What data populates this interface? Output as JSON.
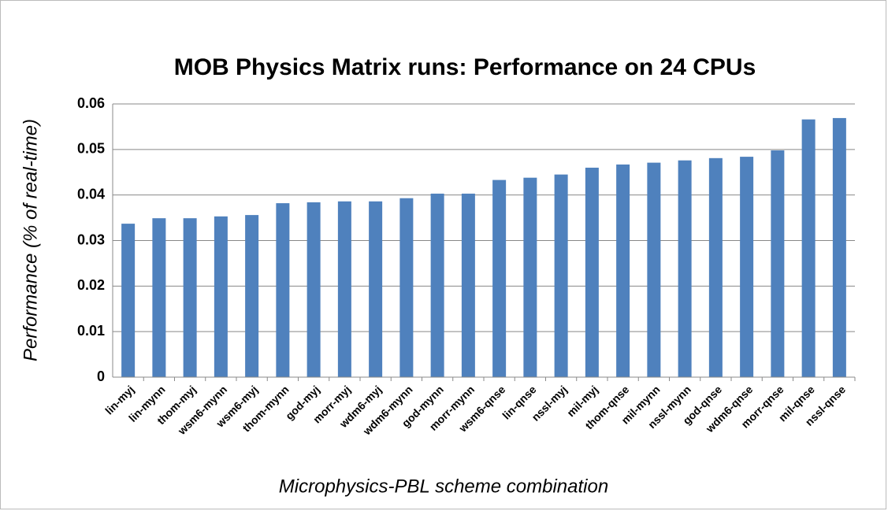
{
  "chart_data": {
    "type": "bar",
    "title": "MOB Physics Matrix runs: Performance on 24 CPUs",
    "x_label": "Microphysics-PBL scheme combination",
    "y_label": "Performance (% of real-time)",
    "categories": [
      "lin-myj",
      "lin-mynn",
      "thom-myj",
      "wsm6-mynn",
      "wsm6-myj",
      "thom-mynn",
      "god-myj",
      "morr-myj",
      "wdm6-myj",
      "wdm6-mynn",
      "god-mynn",
      "morr-mynn",
      "wsm6-qnse",
      "lin-qnse",
      "nssl-myj",
      "mil-myj",
      "thom-qnse",
      "mil-mynn",
      "nssl-mynn",
      "god-qnse",
      "wdm6-qnse",
      "morr-qnse",
      "mil-qnse",
      "nssl-qnse"
    ],
    "values": [
      0.0337,
      0.0349,
      0.0349,
      0.0353,
      0.0356,
      0.0382,
      0.0384,
      0.0386,
      0.0386,
      0.0393,
      0.0403,
      0.0403,
      0.0433,
      0.0438,
      0.0445,
      0.046,
      0.0467,
      0.0471,
      0.0476,
      0.0481,
      0.0484,
      0.0498,
      0.0566,
      0.0569
    ],
    "color": "#4f81bd",
    "ylim": [
      0,
      0.06
    ],
    "yticks": [
      0,
      0.01,
      0.02,
      0.03,
      0.04,
      0.05,
      0.06
    ],
    "grid": true
  }
}
